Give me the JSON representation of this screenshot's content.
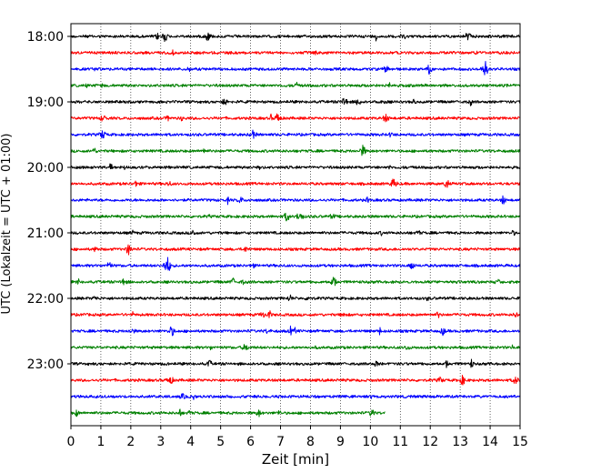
{
  "chart_data": {
    "type": "line",
    "title": "",
    "xlabel": "Zeit  [min]",
    "ylabel": "UTC (Lokalzeit = UTC + 01:00)",
    "xlim": [
      0,
      15
    ],
    "x_ticks": [
      0,
      1,
      2,
      3,
      4,
      5,
      6,
      7,
      8,
      9,
      10,
      11,
      12,
      13,
      14,
      15
    ],
    "x_grid": "dotted vertical",
    "y_ticks": [
      "18:00",
      "19:00",
      "20:00",
      "21:00",
      "22:00",
      "23:00"
    ],
    "trace_interval_min": 15,
    "start_time": "18:00",
    "trace_colors": [
      "#000000",
      "#ff0000",
      "#0000ff",
      "#008000"
    ],
    "traces": [
      {
        "start": "18:00",
        "color": "#000000",
        "duration_min": 15
      },
      {
        "start": "18:15",
        "color": "#ff0000",
        "duration_min": 15
      },
      {
        "start": "18:30",
        "color": "#0000ff",
        "duration_min": 15
      },
      {
        "start": "18:45",
        "color": "#008000",
        "duration_min": 15
      },
      {
        "start": "19:00",
        "color": "#000000",
        "duration_min": 15
      },
      {
        "start": "19:15",
        "color": "#ff0000",
        "duration_min": 15
      },
      {
        "start": "19:30",
        "color": "#0000ff",
        "duration_min": 15
      },
      {
        "start": "19:45",
        "color": "#008000",
        "duration_min": 15
      },
      {
        "start": "20:00",
        "color": "#000000",
        "duration_min": 15
      },
      {
        "start": "20:15",
        "color": "#ff0000",
        "duration_min": 15
      },
      {
        "start": "20:30",
        "color": "#0000ff",
        "duration_min": 15
      },
      {
        "start": "20:45",
        "color": "#008000",
        "duration_min": 15
      },
      {
        "start": "21:00",
        "color": "#000000",
        "duration_min": 15
      },
      {
        "start": "21:15",
        "color": "#ff0000",
        "duration_min": 15
      },
      {
        "start": "21:30",
        "color": "#0000ff",
        "duration_min": 15
      },
      {
        "start": "21:45",
        "color": "#008000",
        "duration_min": 15
      },
      {
        "start": "22:00",
        "color": "#000000",
        "duration_min": 15
      },
      {
        "start": "22:15",
        "color": "#ff0000",
        "duration_min": 15
      },
      {
        "start": "22:30",
        "color": "#0000ff",
        "duration_min": 15
      },
      {
        "start": "22:45",
        "color": "#008000",
        "duration_min": 15
      },
      {
        "start": "23:00",
        "color": "#000000",
        "duration_min": 15
      },
      {
        "start": "23:15",
        "color": "#ff0000",
        "duration_min": 15
      },
      {
        "start": "23:30",
        "color": "#0000ff",
        "duration_min": 15
      },
      {
        "start": "23:45",
        "color": "#008000",
        "duration_min": 10.5
      }
    ]
  }
}
